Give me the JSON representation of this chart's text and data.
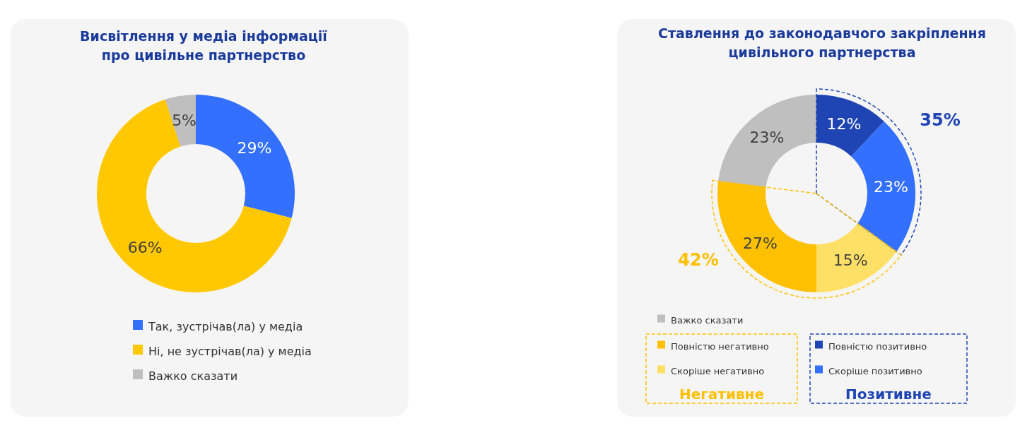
{
  "chart_data": [
    {
      "type": "donut",
      "title": "Висвітлення у медіа інформації про цивільне партнерство",
      "categories": [
        "Так, зустрічав(ла) у медіа",
        "Ні, не зустрічав(ла) у медіа",
        "Важко сказати"
      ],
      "values": [
        29,
        66,
        5
      ],
      "colors": [
        "#3370ff",
        "#ffc800",
        "#bfbfbf"
      ],
      "value_labels": [
        "29%",
        "66%",
        "5%"
      ],
      "legend": "bottom"
    },
    {
      "type": "donut",
      "title": "Ставлення до законодавчого закріплення цивільного партнерства",
      "categories": [
        "Повністю позитивно",
        "Скоріше позитивно",
        "Скоріше негативно",
        "Повністю негативно",
        "Важко сказати"
      ],
      "values": [
        12,
        23,
        15,
        27,
        23
      ],
      "colors": [
        "#1f45b5",
        "#3370ff",
        "#ffe066",
        "#ffc000",
        "#bfbfbf"
      ],
      "value_labels": [
        "12%",
        "23%",
        "15%",
        "27%",
        "23%"
      ],
      "legend": "bottom",
      "annotations": [
        "35%",
        "42%",
        "Негативне",
        "Позитивне"
      ]
    }
  ]
}
